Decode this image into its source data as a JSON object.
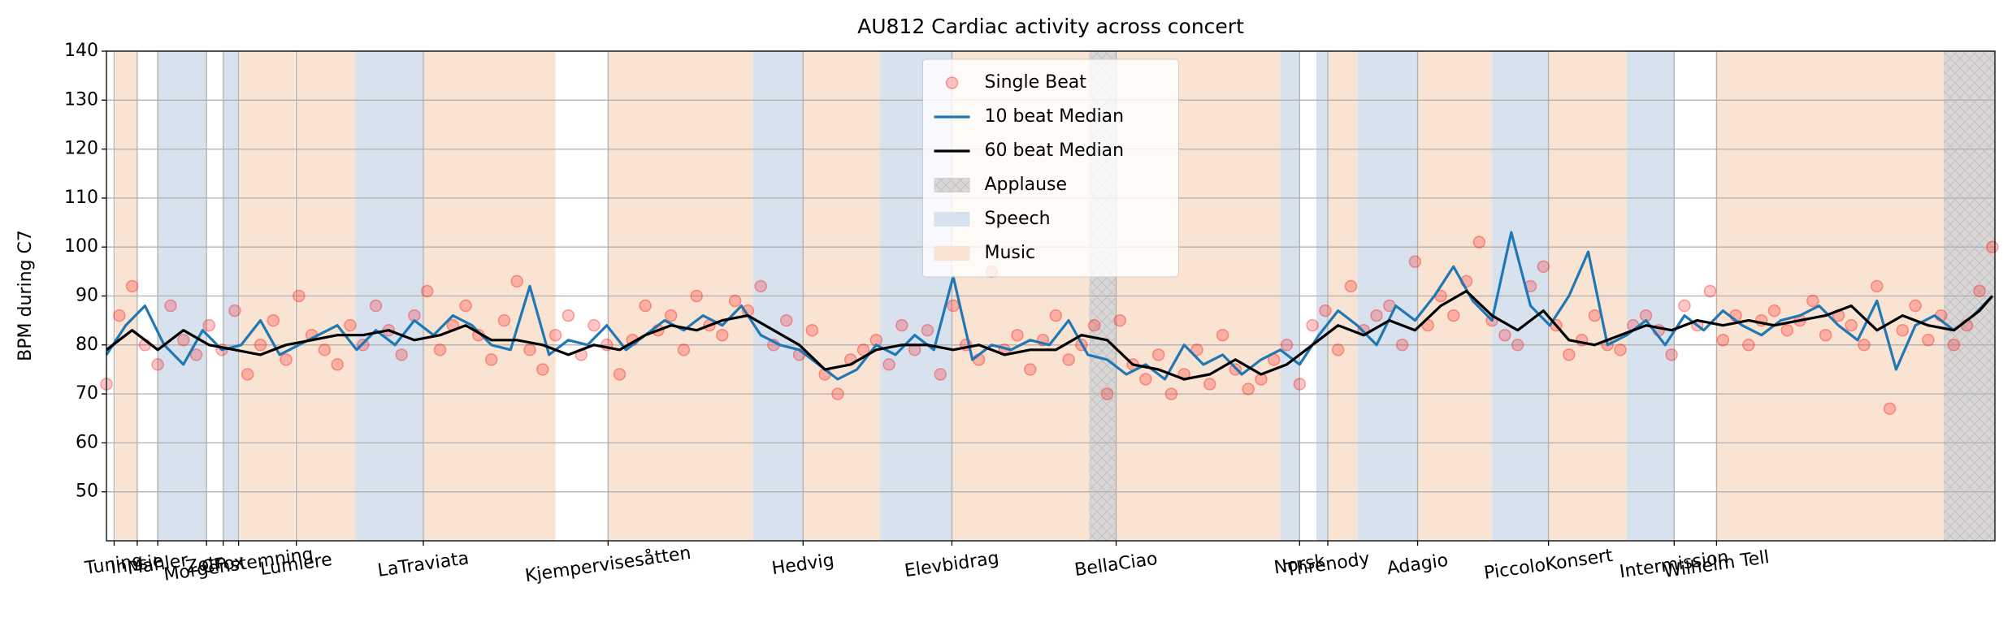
{
  "chart_data": {
    "type": "line",
    "title": "AU812 Cardiac activity across concert",
    "y_label": "BPM during C7",
    "xlim": [
      0,
      1472
    ],
    "ylim": [
      40,
      140
    ],
    "yticks": [
      50,
      60,
      70,
      80,
      90,
      100,
      110,
      120,
      130,
      140
    ],
    "xticks": [
      {
        "value": 6,
        "label": "Tuning"
      },
      {
        "value": 24,
        "label": "Innsie"
      },
      {
        "value": 40,
        "label": "Mahler"
      },
      {
        "value": 78,
        "label": "Zotn"
      },
      {
        "value": 91,
        "label": "CFox"
      },
      {
        "value": 103,
        "label": "Morgenstemning"
      },
      {
        "value": 148,
        "label": "Lumiere"
      },
      {
        "value": 247,
        "label": "LaTraviata"
      },
      {
        "value": 391,
        "label": "Kjempervisesåtten"
      },
      {
        "value": 543,
        "label": "Hedvig"
      },
      {
        "value": 659,
        "label": "Elevbidrag"
      },
      {
        "value": 787,
        "label": "BellaCiao"
      },
      {
        "value": 930,
        "label": "Norsk"
      },
      {
        "value": 952,
        "label": "Threnody"
      },
      {
        "value": 1022,
        "label": "Adagio"
      },
      {
        "value": 1124,
        "label": "PiccoloKonsert"
      },
      {
        "value": 1222,
        "label": "Intermission"
      },
      {
        "value": 1255,
        "label": "Wilhelm Tell"
      }
    ],
    "grid": true,
    "legend": "upper center",
    "spans": [
      {
        "name": "Applause",
        "color": "#d9d6d6",
        "ranges": [
          [
            766,
            787
          ],
          [
            1432,
            1472
          ]
        ]
      },
      {
        "name": "Speech",
        "color": "#d8e2ef",
        "ranges": [
          [
            40,
            78
          ],
          [
            91,
            103
          ],
          [
            194,
            247
          ],
          [
            504,
            543
          ],
          [
            603,
            659
          ],
          [
            915,
            930
          ],
          [
            943,
            952
          ],
          [
            975,
            1022
          ],
          [
            1080,
            1124
          ],
          [
            1185,
            1222
          ]
        ]
      },
      {
        "name": "Music",
        "color": "#f9e3d2",
        "ranges": [
          [
            7,
            24
          ],
          [
            104,
            147
          ],
          [
            148,
            194
          ],
          [
            247,
            350
          ],
          [
            391,
            504
          ],
          [
            543,
            603
          ],
          [
            659,
            766
          ],
          [
            787,
            915
          ],
          [
            952,
            975
          ],
          [
            1022,
            1080
          ],
          [
            1124,
            1185
          ],
          [
            1255,
            1432
          ]
        ]
      }
    ],
    "series": [
      {
        "name": "Single Beat",
        "type": "scatter",
        "color": "#ff0000",
        "x": [
          0,
          10,
          20,
          30,
          40,
          50,
          60,
          70,
          80,
          90,
          100,
          110,
          120,
          130,
          140,
          150,
          160,
          170,
          180,
          190,
          200,
          210,
          220,
          230,
          240,
          250,
          260,
          270,
          280,
          290,
          300,
          310,
          320,
          330,
          340,
          350,
          360,
          370,
          380,
          390,
          400,
          410,
          420,
          430,
          440,
          450,
          460,
          470,
          480,
          490,
          500,
          510,
          520,
          530,
          540,
          550,
          560,
          570,
          580,
          590,
          600,
          610,
          620,
          630,
          640,
          650,
          660,
          670,
          680,
          690,
          700,
          710,
          720,
          730,
          740,
          750,
          760,
          770,
          780,
          790,
          800,
          810,
          820,
          830,
          840,
          850,
          860,
          870,
          880,
          890,
          900,
          910,
          920,
          930,
          940,
          950,
          960,
          970,
          980,
          990,
          1000,
          1010,
          1020,
          1030,
          1040,
          1050,
          1060,
          1070,
          1080,
          1090,
          1100,
          1110,
          1120,
          1130,
          1140,
          1150,
          1160,
          1170,
          1180,
          1190,
          1200,
          1210,
          1220,
          1230,
          1240,
          1250,
          1260,
          1270,
          1280,
          1290,
          1300,
          1310,
          1320,
          1330,
          1340,
          1350,
          1360,
          1370,
          1380,
          1390,
          1400,
          1410,
          1420,
          1430,
          1440,
          1450,
          1460,
          1470
        ],
        "values": [
          72,
          86,
          92,
          80,
          76,
          88,
          81,
          78,
          84,
          79,
          87,
          74,
          80,
          85,
          77,
          90,
          82,
          79,
          76,
          84,
          80,
          88,
          83,
          78,
          86,
          91,
          79,
          84,
          88,
          82,
          77,
          85,
          93,
          79,
          75,
          82,
          86,
          78,
          84,
          80,
          74,
          81,
          88,
          83,
          86,
          79,
          90,
          84,
          82,
          89,
          87,
          92,
          80,
          85,
          78,
          83,
          74,
          70,
          77,
          79,
          81,
          76,
          84,
          79,
          83,
          74,
          88,
          80,
          77,
          95,
          79,
          82,
          75,
          81,
          86,
          77,
          80,
          84,
          70,
          85,
          76,
          73,
          78,
          70,
          74,
          79,
          72,
          82,
          75,
          71,
          73,
          77,
          80,
          72,
          84,
          87,
          79,
          92,
          83,
          86,
          88,
          80,
          97,
          84,
          90,
          86,
          93,
          101,
          85,
          82,
          80,
          92,
          96,
          84,
          78,
          81,
          86,
          80,
          79,
          84,
          86,
          83,
          78,
          88,
          84,
          91,
          81,
          86,
          80,
          85,
          87,
          83,
          85,
          89,
          82,
          86,
          84,
          80,
          92,
          67,
          83,
          88,
          81,
          86,
          80,
          84,
          91,
          100
        ]
      },
      {
        "name": "10 beat Median",
        "type": "line",
        "color": "#1f77b4",
        "x": [
          0,
          15,
          30,
          45,
          60,
          75,
          90,
          105,
          120,
          135,
          150,
          165,
          180,
          195,
          210,
          225,
          240,
          255,
          270,
          285,
          300,
          315,
          330,
          345,
          360,
          375,
          390,
          405,
          420,
          435,
          450,
          465,
          480,
          495,
          510,
          525,
          540,
          555,
          570,
          585,
          600,
          615,
          630,
          645,
          660,
          675,
          690,
          705,
          720,
          735,
          750,
          765,
          780,
          795,
          810,
          825,
          840,
          855,
          870,
          885,
          900,
          915,
          930,
          945,
          960,
          975,
          990,
          1005,
          1020,
          1035,
          1050,
          1065,
          1080,
          1095,
          1110,
          1125,
          1140,
          1155,
          1170,
          1185,
          1200,
          1215,
          1230,
          1245,
          1260,
          1275,
          1290,
          1305,
          1320,
          1335,
          1350,
          1365,
          1380,
          1395,
          1410,
          1425,
          1440,
          1455,
          1470
        ],
        "values": [
          78,
          84,
          88,
          80,
          76,
          83,
          79,
          80,
          85,
          78,
          80,
          82,
          84,
          79,
          83,
          80,
          85,
          82,
          86,
          84,
          80,
          79,
          92,
          78,
          81,
          80,
          84,
          79,
          82,
          85,
          83,
          86,
          84,
          88,
          82,
          80,
          79,
          76,
          73,
          75,
          80,
          78,
          82,
          79,
          94,
          77,
          80,
          79,
          81,
          80,
          85,
          78,
          77,
          74,
          76,
          73,
          80,
          76,
          78,
          74,
          77,
          79,
          76,
          82,
          87,
          84,
          80,
          88,
          85,
          90,
          96,
          89,
          85,
          103,
          88,
          84,
          90,
          99,
          80,
          82,
          85,
          80,
          86,
          83,
          87,
          84,
          82,
          85,
          86,
          88,
          84,
          81,
          89,
          75,
          84,
          86,
          83,
          86,
          90
        ]
      },
      {
        "name": "60 beat Median",
        "type": "line",
        "color": "#000000",
        "x": [
          0,
          20,
          40,
          60,
          80,
          100,
          120,
          140,
          160,
          180,
          200,
          220,
          240,
          260,
          280,
          300,
          320,
          340,
          360,
          380,
          400,
          420,
          440,
          460,
          480,
          500,
          520,
          540,
          560,
          580,
          600,
          620,
          640,
          660,
          680,
          700,
          720,
          740,
          760,
          780,
          800,
          820,
          840,
          860,
          880,
          900,
          920,
          940,
          960,
          980,
          1000,
          1020,
          1040,
          1060,
          1080,
          1100,
          1120,
          1140,
          1160,
          1180,
          1200,
          1220,
          1240,
          1260,
          1280,
          1300,
          1320,
          1340,
          1360,
          1380,
          1400,
          1420,
          1440,
          1460,
          1470
        ],
        "values": [
          79,
          83,
          79,
          83,
          80,
          79,
          78,
          80,
          81,
          82,
          82,
          83,
          81,
          82,
          84,
          81,
          81,
          80,
          78,
          80,
          79,
          82,
          84,
          83,
          85,
          86,
          83,
          80,
          75,
          76,
          79,
          80,
          80,
          79,
          80,
          78,
          79,
          79,
          82,
          81,
          76,
          75,
          73,
          74,
          77,
          74,
          76,
          80,
          84,
          82,
          85,
          83,
          88,
          91,
          86,
          83,
          87,
          81,
          80,
          82,
          84,
          83,
          85,
          84,
          85,
          84,
          85,
          86,
          88,
          83,
          86,
          84,
          83,
          87,
          90
        ]
      }
    ]
  }
}
